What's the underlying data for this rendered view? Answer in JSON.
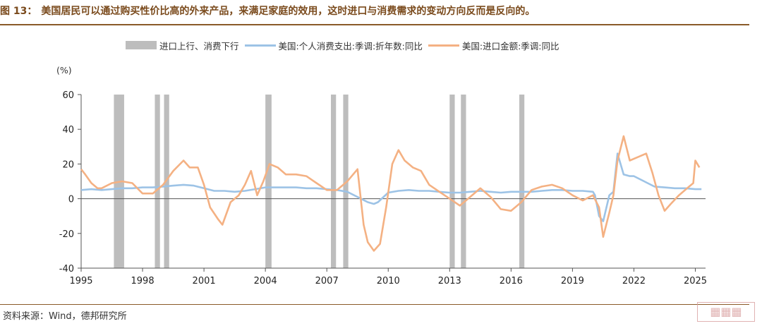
{
  "header": {
    "figure_label": "图 13：",
    "title_text": "美国居民可以通过购买性价比高的外来产品，来满足家庭的效用，这时进口与消费需求的变动方向反而是反向的。"
  },
  "footer": {
    "source": "资料来源：Wind，德邦研究所"
  },
  "colors": {
    "bar": "#bdbdbd",
    "consumption": "#9dc3e6",
    "imports": "#f4b183",
    "title": "#7a4a1c",
    "rule": "#8a5a28"
  },
  "chart_data": {
    "type": "line",
    "ylabel": "(%)",
    "ylim": [
      -40,
      60
    ],
    "yticks": [
      -40,
      -20,
      0,
      20,
      40,
      60
    ],
    "xlim": [
      1995,
      2025.5
    ],
    "xticks": [
      1995,
      1998,
      2001,
      2004,
      2007,
      2010,
      2013,
      2016,
      2019,
      2022,
      2025
    ],
    "legend": [
      "进口上行、消费下行",
      "美国:个人消费支出:季调:折年数:同比",
      "美国:进口金额:季调:同比"
    ],
    "legend_position": "top",
    "shaded_periods": {
      "name": "进口上行、消费下行",
      "ranges": [
        [
          1996.6,
          1997.1
        ],
        [
          1998.6,
          1998.85
        ],
        [
          1999.05,
          1999.3
        ],
        [
          2004.0,
          2004.3
        ],
        [
          2007.2,
          2007.45
        ],
        [
          2007.8,
          2008.05
        ],
        [
          2013.0,
          2013.25
        ],
        [
          2013.55,
          2013.8
        ],
        [
          2016.4,
          2016.65
        ]
      ]
    },
    "series": [
      {
        "name": "美国:个人消费支出:季调:折年数:同比",
        "x": [
          1995.0,
          1995.5,
          1996.0,
          1996.5,
          1997.0,
          1997.5,
          1998.0,
          1998.5,
          1999.0,
          1999.5,
          2000.0,
          2000.5,
          2001.0,
          2001.5,
          2002.0,
          2002.5,
          2003.0,
          2003.5,
          2004.0,
          2004.5,
          2005.0,
          2005.5,
          2006.0,
          2006.5,
          2007.0,
          2007.5,
          2008.0,
          2008.5,
          2009.0,
          2009.3,
          2009.5,
          2010.0,
          2010.5,
          2011.0,
          2011.5,
          2012.0,
          2012.5,
          2013.0,
          2013.5,
          2014.0,
          2014.5,
          2015.0,
          2015.5,
          2016.0,
          2016.5,
          2017.0,
          2017.5,
          2018.0,
          2018.5,
          2019.0,
          2019.5,
          2020.0,
          2020.1,
          2020.3,
          2020.5,
          2020.8,
          2021.0,
          2021.2,
          2021.5,
          2021.8,
          2022.0,
          2022.5,
          2023.0,
          2023.5,
          2024.0,
          2024.5,
          2025.0,
          2025.3
        ],
        "values": [
          5,
          5.5,
          5,
          5.5,
          6,
          6,
          6.5,
          6.5,
          7,
          7.5,
          8,
          7.5,
          6,
          4.5,
          4.5,
          4,
          4.5,
          5.5,
          6.5,
          6.5,
          6.5,
          6.5,
          6,
          6,
          5.5,
          5,
          4,
          1,
          -2,
          -3,
          -2,
          3.5,
          4.5,
          5,
          4.5,
          4.5,
          4,
          3.5,
          3.5,
          4,
          4.5,
          4,
          3.5,
          4,
          4,
          4,
          4.5,
          5,
          5,
          4.5,
          4.5,
          4,
          2,
          -10,
          -13,
          2,
          4,
          26,
          14,
          13,
          13,
          10,
          7,
          6.5,
          6,
          6,
          5.5,
          5.5
        ]
      },
      {
        "name": "美国:进口金额:季调:同比",
        "x": [
          1995.0,
          1995.2,
          1995.5,
          1995.8,
          1996.0,
          1996.5,
          1997.0,
          1997.5,
          1998.0,
          1998.5,
          1999.0,
          1999.5,
          2000.0,
          2000.3,
          2000.7,
          2001.0,
          2001.3,
          2001.7,
          2001.9,
          2002.3,
          2002.7,
          2003.0,
          2003.3,
          2003.6,
          2003.9,
          2004.2,
          2004.6,
          2005.0,
          2005.5,
          2006.0,
          2006.5,
          2007.0,
          2007.5,
          2008.0,
          2008.5,
          2008.8,
          2009.0,
          2009.3,
          2009.6,
          2009.9,
          2010.2,
          2010.5,
          2010.8,
          2011.2,
          2011.6,
          2012.0,
          2012.5,
          2013.0,
          2013.5,
          2014.0,
          2014.5,
          2015.0,
          2015.5,
          2016.0,
          2016.5,
          2017.0,
          2017.5,
          2018.0,
          2018.5,
          2019.0,
          2019.5,
          2020.0,
          2020.3,
          2020.5,
          2020.8,
          2021.0,
          2021.2,
          2021.5,
          2021.8,
          2022.2,
          2022.6,
          2022.9,
          2023.2,
          2023.5,
          2023.8,
          2024.2,
          2024.6,
          2024.9,
          2025.0,
          2025.2
        ],
        "values": [
          17,
          14,
          9,
          6,
          6,
          9,
          10,
          9,
          3,
          3,
          8,
          16,
          22,
          18,
          18,
          8,
          -5,
          -12,
          -15,
          -2,
          2,
          8,
          16,
          2,
          10,
          20,
          18,
          14,
          14,
          13,
          9,
          5,
          5,
          10,
          17,
          -15,
          -25,
          -30,
          -26,
          -5,
          20,
          28,
          22,
          18,
          16,
          8,
          4,
          0,
          -4,
          1,
          6,
          1,
          -6,
          -7,
          -2,
          5,
          7,
          8,
          6,
          2,
          -1,
          2,
          -5,
          -22,
          -8,
          2,
          22,
          36,
          22,
          24,
          26,
          15,
          2,
          -7,
          -3,
          2,
          6,
          9,
          22,
          18
        ]
      }
    ]
  }
}
